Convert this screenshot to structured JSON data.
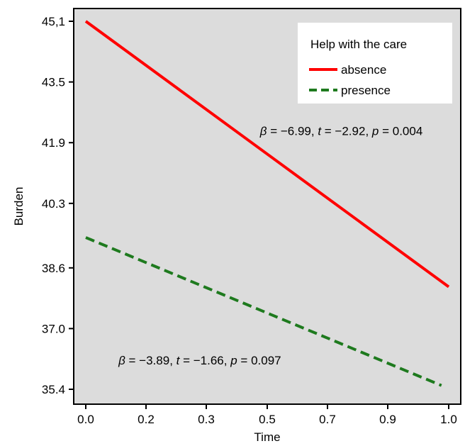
{
  "chart_data": {
    "type": "line",
    "title": "",
    "xlabel": "Time",
    "ylabel": "Burden",
    "xlim": [
      0,
      1
    ],
    "ylim": [
      35.4,
      45.1
    ],
    "x_ticks": [
      0,
      0.2,
      0.3,
      0.5,
      0.7,
      0.9,
      1.0
    ],
    "x_tick_labels": [
      "0.0",
      "0.2",
      "0.3",
      "0.5",
      "0.7",
      "0.9",
      "1.0"
    ],
    "y_ticks": [
      35.4,
      37.0,
      38.6,
      40.3,
      41.9,
      43.5,
      45.1
    ],
    "y_tick_labels": [
      "35.4",
      "37.0",
      "38.6",
      "40.3",
      "41.9",
      "43.5",
      "45,1"
    ],
    "grid": false,
    "background_color": "#dcdcdc",
    "legend": {
      "title": "Help with the care",
      "position": "top-right",
      "entries": [
        "absence",
        "presence"
      ]
    },
    "series": [
      {
        "name": "absence",
        "color": "#ff0000",
        "style": "solid",
        "x": [
          0,
          1.0
        ],
        "y": [
          45.1,
          38.1
        ]
      },
      {
        "name": "presence",
        "color": "#1e7a1e",
        "style": "dashed",
        "x": [
          0,
          0.98
        ],
        "y": [
          39.4,
          35.5
        ]
      }
    ],
    "annotations": [
      {
        "series": "absence",
        "beta": "−6.99",
        "t": "−2.92",
        "p": "0.004",
        "anchor": [
          0.48,
          42.1
        ]
      },
      {
        "series": "presence",
        "beta": "−3.89",
        "t": "−1.66",
        "p": "0.097",
        "anchor": [
          0.09,
          36.05
        ]
      }
    ]
  }
}
